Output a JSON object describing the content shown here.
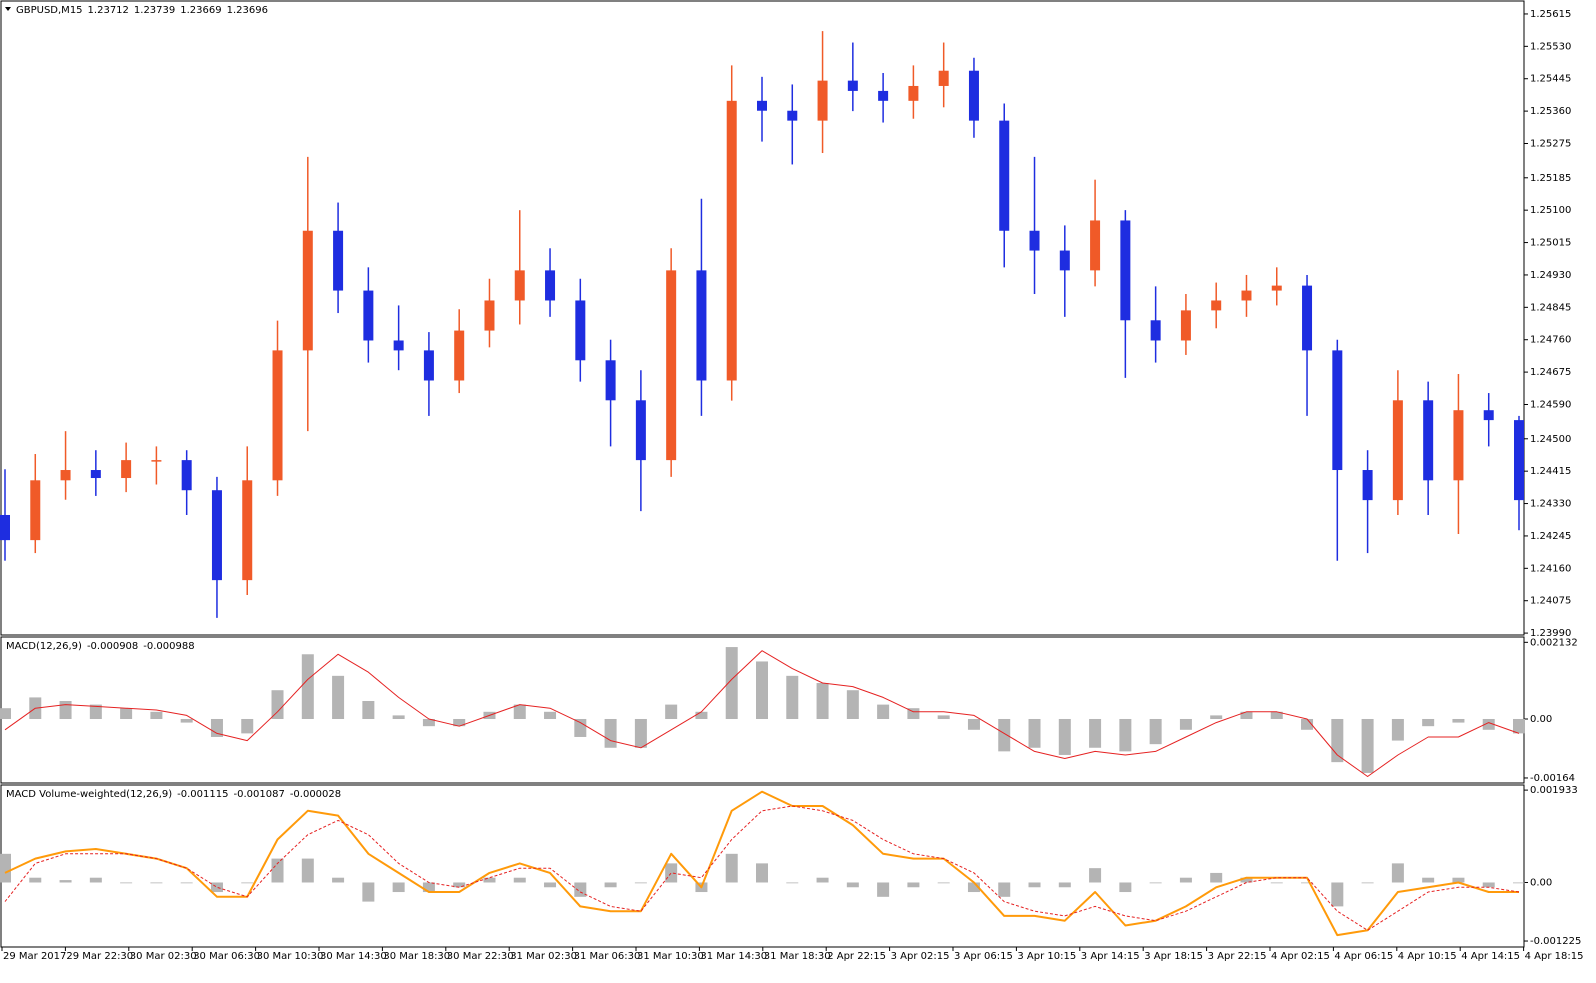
{
  "chart_data": [
    {
      "type": "candlestick",
      "title": "GBPUSD,M15",
      "last_bar": {
        "open": 1.23712,
        "high": 1.23739,
        "low": 1.23669,
        "close": 1.23696
      },
      "up_color": "#f05a28",
      "down_color": "#1e2de0",
      "ylim": [
        1.23985,
        1.25649
      ],
      "yticks": [
        1.25615,
        {
          "value": 1.2553,
          "label": "1.25530"
        },
        1.25445,
        {
          "value": 1.2536,
          "label": "1.25360"
        },
        1.25275,
        1.25185,
        {
          "value": 1.251,
          "label": "1.25100"
        },
        1.25015,
        {
          "value": 1.2493,
          "label": "1.24930"
        },
        1.24845,
        {
          "value": 1.2476,
          "label": "1.24760"
        },
        1.24675,
        {
          "value": 1.2459,
          "label": "1.24590"
        },
        {
          "value": 1.245,
          "label": "1.24500"
        },
        1.24415,
        {
          "value": 1.2433,
          "label": "1.24330"
        },
        1.24245,
        {
          "value": 1.2416,
          "label": "1.24160"
        },
        1.24075,
        {
          "value": 1.2399,
          "label": "1.23990"
        }
      ],
      "open": [
        1.243,
        1.24234,
        1.24391,
        1.24418,
        1.24397,
        1.24444,
        1.24444,
        1.24365,
        1.24129,
        1.24391,
        1.24732,
        1.25046,
        1.24889,
        1.24758,
        1.24732,
        1.24653,
        1.24784,
        1.24863,
        1.24942,
        1.24863,
        1.24706,
        1.24601,
        1.24444,
        1.24942,
        1.24653,
        1.25387,
        1.25361,
        1.25335,
        1.2544,
        1.25413,
        1.25387,
        1.25426,
        1.25466,
        1.25335,
        1.25046,
        1.24994,
        1.24942,
        1.25073,
        1.24811,
        1.24758,
        1.24837,
        1.24863,
        1.24889,
        1.24902,
        1.24732,
        1.24418,
        1.24339,
        1.24601,
        1.24391,
        1.24575,
        1.24549
      ],
      "high": [
        1.2442,
        1.2446,
        1.2452,
        1.2447,
        1.2449,
        1.2448,
        1.2447,
        1.244,
        1.2448,
        1.2481,
        1.2524,
        1.2512,
        1.2495,
        1.2485,
        1.2478,
        1.2484,
        1.2492,
        1.251,
        1.25,
        1.2492,
        1.2476,
        1.2468,
        1.25,
        1.2513,
        1.2548,
        1.2545,
        1.2543,
        1.2557,
        1.2554,
        1.2546,
        1.2548,
        1.2554,
        1.255,
        1.2538,
        1.2524,
        1.2506,
        1.2518,
        1.251,
        1.249,
        1.2488,
        1.2491,
        1.2493,
        1.2495,
        1.2493,
        1.2476,
        1.2447,
        1.2468,
        1.2465,
        1.2467,
        1.2462,
        1.2456
      ],
      "low": [
        1.2418,
        1.242,
        1.2434,
        1.2435,
        1.2436,
        1.2438,
        1.243,
        1.2403,
        1.2409,
        1.2435,
        1.2452,
        1.2483,
        1.247,
        1.2468,
        1.2456,
        1.2462,
        1.2474,
        1.248,
        1.2482,
        1.2465,
        1.2448,
        1.2431,
        1.244,
        1.2456,
        1.246,
        1.2528,
        1.2522,
        1.2525,
        1.2536,
        1.2533,
        1.2534,
        1.2537,
        1.2529,
        1.2495,
        1.2488,
        1.2482,
        1.249,
        1.2466,
        1.247,
        1.2472,
        1.2479,
        1.2482,
        1.2485,
        1.2456,
        1.2418,
        1.242,
        1.243,
        1.243,
        1.2425,
        1.2448,
        1.2426
      ],
      "close": [
        1.24234,
        1.24391,
        1.24418,
        1.24397,
        1.24444,
        1.24444,
        1.24365,
        1.24129,
        1.24391,
        1.24732,
        1.25046,
        1.24889,
        1.24758,
        1.24732,
        1.24653,
        1.24784,
        1.24863,
        1.24942,
        1.24863,
        1.24706,
        1.24601,
        1.24444,
        1.24942,
        1.24653,
        1.25387,
        1.25361,
        1.25335,
        1.2544,
        1.25413,
        1.25387,
        1.25426,
        1.25466,
        1.25335,
        1.25046,
        1.24994,
        1.24942,
        1.25073,
        1.24811,
        1.24758,
        1.24837,
        1.24863,
        1.24889,
        1.24902,
        1.24732,
        1.24418,
        1.24339,
        1.24601,
        1.24391,
        1.24575,
        1.24549,
        1.24339
      ]
    },
    {
      "type": "macd",
      "title": "MACD(12,26,9)",
      "current": [
        -0.000908,
        -0.000988
      ],
      "ylim": [
        -0.00178,
        0.00228
      ],
      "yticks": [
        0.002132,
        {
          "value": 0,
          "label": "0.00"
        },
        -0.00164
      ],
      "series": [
        {
          "style": "bar",
          "color": "#b4b4b4",
          "values": [
            0.0003,
            0.0006,
            0.0005,
            0.0004,
            0.0003,
            0.0002,
            -0.0001,
            -0.0005,
            -0.0004,
            0.0008,
            0.0018,
            0.0012,
            0.0005,
            0.0001,
            -0.0002,
            -0.0002,
            0.0002,
            0.0004,
            0.0002,
            -0.0005,
            -0.0008,
            -0.0008,
            0.0004,
            0.0002,
            0.002,
            0.0016,
            0.0012,
            0.001,
            0.0008,
            0.0004,
            0.0003,
            0.0001,
            -0.0003,
            -0.0009,
            -0.0008,
            -0.001,
            -0.0008,
            -0.0009,
            -0.0007,
            -0.0003,
            0.0001,
            0.0002,
            0.0002,
            -0.0003,
            -0.0012,
            -0.0015,
            -0.0006,
            -0.0002,
            -0.0001,
            -0.0003,
            -0.0004
          ]
        },
        {
          "style": "line",
          "color": "#e52222",
          "values": [
            -0.0003,
            0.0003,
            0.0004,
            0.00035,
            0.0003,
            0.00025,
            0.0001,
            -0.0004,
            -0.0006,
            0.0002,
            0.0011,
            0.0018,
            0.0013,
            0.0006,
            0.0,
            -0.0002,
            0.0001,
            0.0004,
            0.0003,
            -0.0001,
            -0.0006,
            -0.0008,
            -0.0003,
            0.0002,
            0.0011,
            0.0019,
            0.0014,
            0.001,
            0.0009,
            0.0006,
            0.0002,
            0.0002,
            0.0001,
            -0.0004,
            -0.0009,
            -0.0011,
            -0.0009,
            -0.001,
            -0.0009,
            -0.0005,
            -0.0001,
            0.0002,
            0.0002,
            0.0,
            -0.001,
            -0.0016,
            -0.001,
            -0.0005,
            -0.0005,
            -0.0001,
            -0.0004
          ]
        }
      ]
    },
    {
      "type": "macd",
      "title": "MACD Volume-weighted(12,26,9)",
      "current": [
        -0.001115,
        -0.001087,
        -2.8e-05
      ],
      "ylim": [
        -0.00135,
        0.00204
      ],
      "yticks": [
        0.001933,
        {
          "value": 0,
          "label": "0.00"
        },
        -0.001225
      ],
      "series": [
        {
          "style": "bar",
          "color": "#b4b4b4",
          "values": [
            0.0006,
            0.0001,
            5e-05,
            0.0001,
            0,
            0,
            0,
            -0.0002,
            0,
            0.0005,
            0.0005,
            0.0001,
            -0.0004,
            -0.0002,
            -0.0002,
            -0.0001,
            0.0001,
            0.0001,
            -0.0001,
            -0.0003,
            -0.0001,
            0,
            0.0004,
            -0.0002,
            0.0006,
            0.0004,
            0,
            0.0001,
            -0.0001,
            -0.0003,
            -0.0001,
            0,
            -0.0002,
            -0.0003,
            -0.0001,
            -0.0001,
            0.0003,
            -0.0002,
            0,
            0.0001,
            0.0002,
            0.0001,
            0,
            0,
            -0.0005,
            0,
            0.0004,
            0.0001,
            0.0001,
            -0.0001,
            0
          ]
        },
        {
          "style": "line",
          "color": "#ff9a0a",
          "values": [
            0.0002,
            0.0005,
            0.00065,
            0.0007,
            0.0006,
            0.0005,
            0.0003,
            -0.0003,
            -0.0003,
            0.0009,
            0.0015,
            0.0014,
            0.0006,
            0.0002,
            -0.0002,
            -0.0002,
            0.0002,
            0.0004,
            0.0002,
            -0.0005,
            -0.0006,
            -0.0006,
            0.0006,
            -0.0001,
            0.0015,
            0.0019,
            0.0016,
            0.0016,
            0.0012,
            0.0006,
            0.0005,
            0.0005,
            0.0,
            -0.0007,
            -0.0007,
            -0.0008,
            -0.0002,
            -0.0009,
            -0.0008,
            -0.0005,
            -0.0001,
            0.0001,
            0.0001,
            0.0001,
            -0.0011,
            -0.001,
            -0.0002,
            -0.0001,
            0.0,
            -0.0002,
            -0.0002
          ]
        },
        {
          "style": "dashed",
          "color": "#e52222",
          "values": [
            -0.0004,
            0.0004,
            0.0006,
            0.0006,
            0.0006,
            0.0005,
            0.0003,
            -0.0001,
            -0.0003,
            0.0004,
            0.001,
            0.0013,
            0.001,
            0.0004,
            0.0,
            -0.0001,
            0.0001,
            0.0003,
            0.0003,
            -0.0002,
            -0.0005,
            -0.0006,
            0.0002,
            0.0001,
            0.0009,
            0.0015,
            0.0016,
            0.0015,
            0.0013,
            0.0009,
            0.0006,
            0.0005,
            0.0002,
            -0.0004,
            -0.0006,
            -0.0007,
            -0.0005,
            -0.0007,
            -0.0008,
            -0.0006,
            -0.0003,
            0.0,
            0.0001,
            0.0001,
            -0.0006,
            -0.001,
            -0.0006,
            -0.0002,
            -0.0001,
            -0.0001,
            -0.0002
          ]
        }
      ],
      "x_tick_labels": [
        "29 Mar 2017",
        "29 Mar 22:30",
        "30 Mar 02:30",
        "30 Mar 06:30",
        "30 Mar 10:30",
        "30 Mar 14:30",
        "30 Mar 18:30",
        "30 Mar 22:30",
        "31 Mar 02:30",
        "31 Mar 06:30",
        "31 Mar 10:30",
        "31 Mar 14:30",
        "31 Mar 18:30",
        "2 Apr 22:15",
        "3 Apr 02:15",
        "3 Apr 06:15",
        "3 Apr 10:15",
        "3 Apr 14:15",
        "3 Apr 18:15",
        "3 Apr 22:15",
        "4 Apr 02:15",
        "4 Apr 06:15",
        "4 Apr 10:15",
        "4 Apr 14:15",
        "4 Apr 18:15"
      ]
    }
  ]
}
